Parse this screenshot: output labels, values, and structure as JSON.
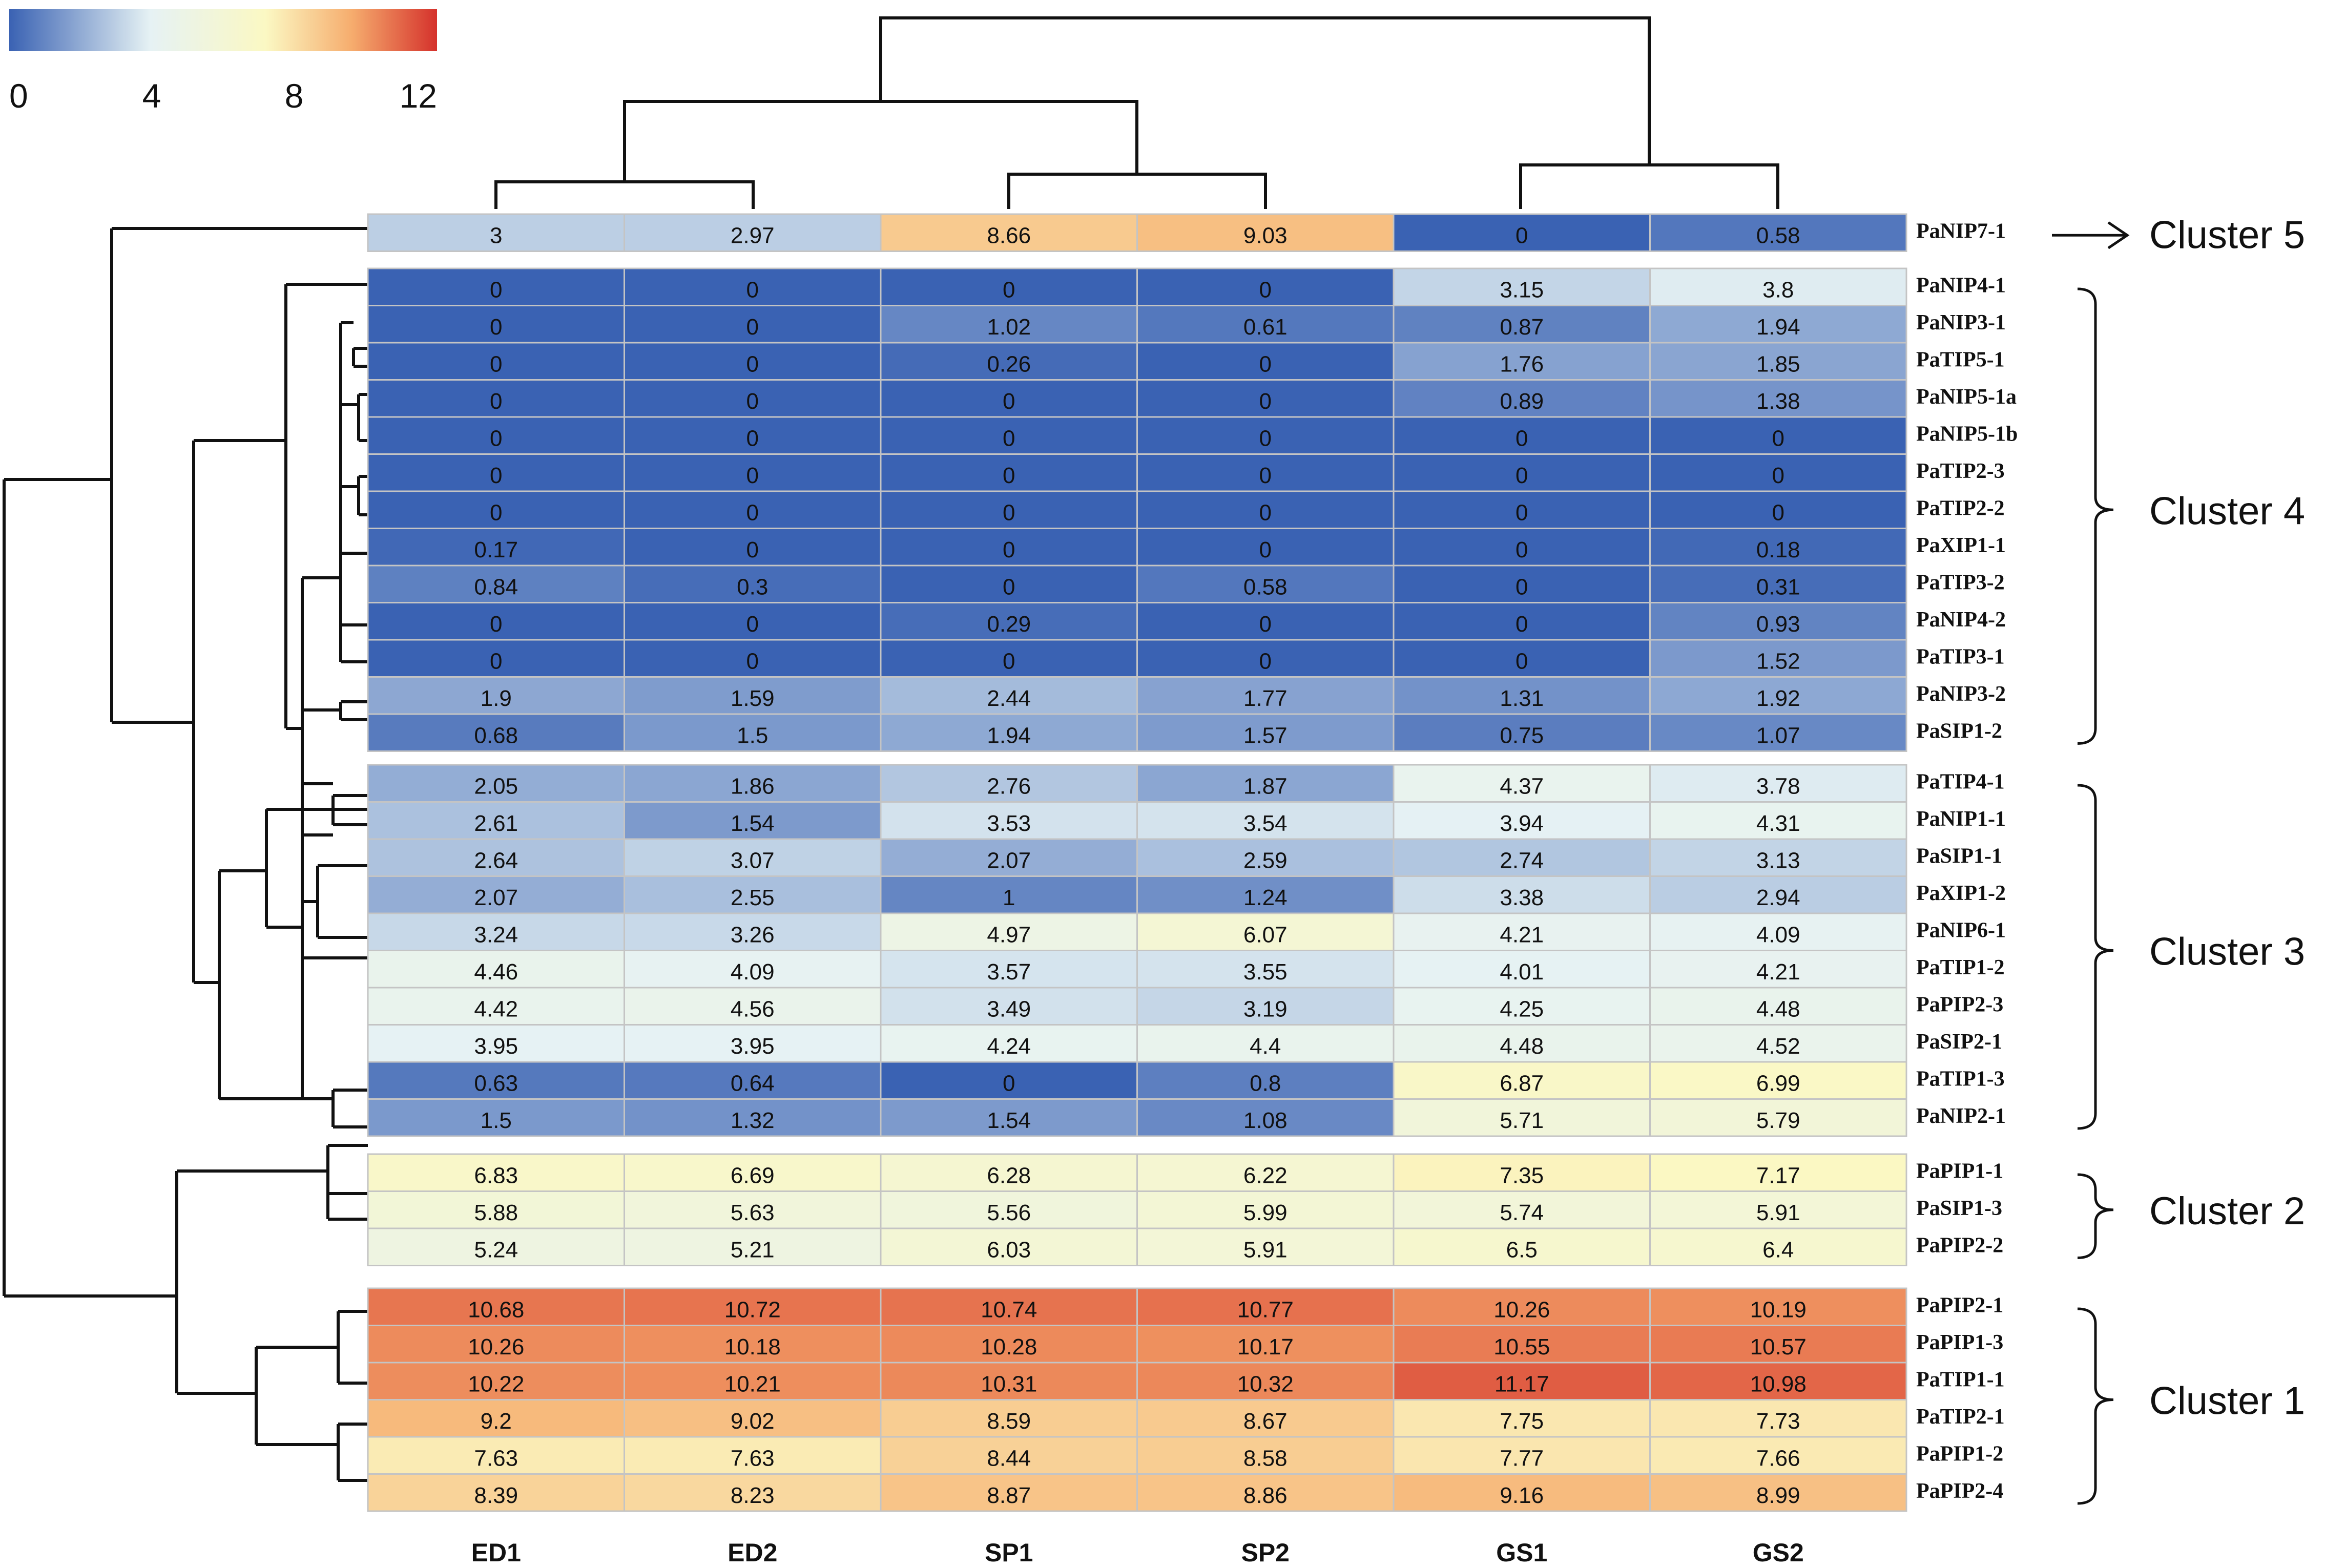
{
  "chart_data": {
    "type": "heatmap",
    "title": "",
    "columns": [
      "ED1",
      "ED2",
      "SP1",
      "SP2",
      "GS1",
      "GS2"
    ],
    "color_scale": {
      "min": 0,
      "max": 12,
      "ticks": [
        "0",
        "4",
        "8",
        "12"
      ],
      "colors": [
        "#3a62b3",
        "#e6f2f4",
        "#fbf8c3",
        "#f6ad6e",
        "#d5322c"
      ]
    },
    "clusters": [
      {
        "name": "Cluster 5",
        "rows": [
          {
            "gene": "PaNIP7-1",
            "values": [
              3,
              2.97,
              8.66,
              9.03,
              0,
              0.58
            ],
            "labels": [
              "3",
              "2.97",
              "8.66",
              "9.03",
              "0",
              "0.58"
            ]
          }
        ]
      },
      {
        "name": "Cluster 4",
        "rows": [
          {
            "gene": "PaNIP4-1",
            "values": [
              0,
              0,
              0,
              0,
              3.15,
              3.8
            ],
            "labels": [
              "0",
              "0",
              "0",
              "0",
              "3.15",
              "3.8"
            ]
          },
          {
            "gene": "PaNIP3-1",
            "values": [
              0,
              0,
              1.02,
              0.61,
              0.87,
              1.94
            ],
            "labels": [
              "0",
              "0",
              "1.02",
              "0.61",
              "0.87",
              "1.94"
            ]
          },
          {
            "gene": "PaTIP5-1",
            "values": [
              0,
              0,
              0.26,
              0,
              1.76,
              1.85
            ],
            "labels": [
              "0",
              "0",
              "0.26",
              "0",
              "1.76",
              "1.85"
            ]
          },
          {
            "gene": "PaNIP5-1a",
            "values": [
              0,
              0,
              0,
              0,
              0.89,
              1.38
            ],
            "labels": [
              "0",
              "0",
              "0",
              "0",
              "0.89",
              "1.38"
            ]
          },
          {
            "gene": "PaNIP5-1b",
            "values": [
              0,
              0,
              0,
              0,
              0,
              0
            ],
            "labels": [
              "0",
              "0",
              "0",
              "0",
              "0",
              "0"
            ]
          },
          {
            "gene": "PaTIP2-3",
            "values": [
              0,
              0,
              0,
              0,
              0,
              0
            ],
            "labels": [
              "0",
              "0",
              "0",
              "0",
              "0",
              "0"
            ]
          },
          {
            "gene": "PaTIP2-2",
            "values": [
              0,
              0,
              0,
              0,
              0,
              0
            ],
            "labels": [
              "0",
              "0",
              "0",
              "0",
              "0",
              "0"
            ]
          },
          {
            "gene": "PaXIP1-1",
            "values": [
              0.17,
              0,
              0,
              0,
              0,
              0.18
            ],
            "labels": [
              "0.17",
              "0",
              "0",
              "0",
              "0",
              "0.18"
            ]
          },
          {
            "gene": "PaTIP3-2",
            "values": [
              0.84,
              0.3,
              0,
              0.58,
              0,
              0.31
            ],
            "labels": [
              "0.84",
              "0.3",
              "0",
              "0.58",
              "0",
              "0.31"
            ]
          },
          {
            "gene": "PaNIP4-2",
            "values": [
              0,
              0,
              0.29,
              0,
              0,
              0.93
            ],
            "labels": [
              "0",
              "0",
              "0.29",
              "0",
              "0",
              "0.93"
            ]
          },
          {
            "gene": "PaTIP3-1",
            "values": [
              0,
              0,
              0,
              0,
              0,
              1.52
            ],
            "labels": [
              "0",
              "0",
              "0",
              "0",
              "0",
              "1.52"
            ]
          },
          {
            "gene": "PaNIP3-2",
            "values": [
              1.9,
              1.59,
              2.44,
              1.77,
              1.31,
              1.92
            ],
            "labels": [
              "1.9",
              "1.59",
              "2.44",
              "1.77",
              "1.31",
              "1.92"
            ]
          },
          {
            "gene": "PaSIP1-2",
            "values": [
              0.68,
              1.5,
              1.94,
              1.57,
              0.75,
              1.07
            ],
            "labels": [
              "0.68",
              "1.5",
              "1.94",
              "1.57",
              "0.75",
              "1.07"
            ]
          }
        ]
      },
      {
        "name": "Cluster 3",
        "rows": [
          {
            "gene": "PaTIP4-1",
            "values": [
              2.05,
              1.86,
              2.76,
              1.87,
              4.37,
              3.78
            ],
            "labels": [
              "2.05",
              "1.86",
              "2.76",
              "1.87",
              "4.37",
              "3.78"
            ]
          },
          {
            "gene": "PaNIP1-1",
            "values": [
              2.61,
              1.54,
              3.53,
              3.54,
              3.94,
              4.31
            ],
            "labels": [
              "2.61",
              "1.54",
              "3.53",
              "3.54",
              "3.94",
              "4.31"
            ]
          },
          {
            "gene": "PaSIP1-1",
            "values": [
              2.64,
              3.07,
              2.07,
              2.59,
              2.74,
              3.13
            ],
            "labels": [
              "2.64",
              "3.07",
              "2.07",
              "2.59",
              "2.74",
              "3.13"
            ]
          },
          {
            "gene": "PaXIP1-2",
            "values": [
              2.07,
              2.55,
              1,
              1.24,
              3.38,
              2.94
            ],
            "labels": [
              "2.07",
              "2.55",
              "1",
              "1.24",
              "3.38",
              "2.94"
            ]
          },
          {
            "gene": "PaNIP6-1",
            "values": [
              3.24,
              3.26,
              4.97,
              6.07,
              4.21,
              4.09
            ],
            "labels": [
              "3.24",
              "3.26",
              "4.97",
              "6.07",
              "4.21",
              "4.09"
            ]
          },
          {
            "gene": "PaTIP1-2",
            "values": [
              4.46,
              4.09,
              3.57,
              3.55,
              4.01,
              4.21
            ],
            "labels": [
              "4.46",
              "4.09",
              "3.57",
              "3.55",
              "4.01",
              "4.21"
            ]
          },
          {
            "gene": "PaPIP2-3",
            "values": [
              4.42,
              4.56,
              3.49,
              3.19,
              4.25,
              4.48
            ],
            "labels": [
              "4.42",
              "4.56",
              "3.49",
              "3.19",
              "4.25",
              "4.48"
            ]
          },
          {
            "gene": "PaSIP2-1",
            "values": [
              3.95,
              3.95,
              4.24,
              4.4,
              4.48,
              4.52
            ],
            "labels": [
              "3.95",
              "3.95",
              "4.24",
              "4.4",
              "4.48",
              "4.52"
            ]
          },
          {
            "gene": "PaTIP1-3",
            "values": [
              0.63,
              0.64,
              0,
              0.8,
              6.87,
              6.99
            ],
            "labels": [
              "0.63",
              "0.64",
              "0",
              "0.8",
              "6.87",
              "6.99"
            ]
          },
          {
            "gene": "PaNIP2-1",
            "values": [
              1.5,
              1.32,
              1.54,
              1.08,
              5.71,
              5.79
            ],
            "labels": [
              "1.5",
              "1.32",
              "1.54",
              "1.08",
              "5.71",
              "5.79"
            ]
          }
        ]
      },
      {
        "name": "Cluster 2",
        "rows": [
          {
            "gene": "PaPIP1-1",
            "values": [
              6.83,
              6.69,
              6.28,
              6.22,
              7.35,
              7.17
            ],
            "labels": [
              "6.83",
              "6.69",
              "6.28",
              "6.22",
              "7.35",
              "7.17"
            ]
          },
          {
            "gene": "PaSIP1-3",
            "values": [
              5.88,
              5.63,
              5.56,
              5.99,
              5.74,
              5.91
            ],
            "labels": [
              "5.88",
              "5.63",
              "5.56",
              "5.99",
              "5.74",
              "5.91"
            ]
          },
          {
            "gene": "PaPIP2-2",
            "values": [
              5.24,
              5.21,
              6.03,
              5.91,
              6.5,
              6.4
            ],
            "labels": [
              "5.24",
              "5.21",
              "6.03",
              "5.91",
              "6.5",
              "6.4"
            ]
          }
        ]
      },
      {
        "name": "Cluster 1",
        "rows": [
          {
            "gene": "PaPIP2-1",
            "values": [
              10.68,
              10.72,
              10.74,
              10.77,
              10.26,
              10.19
            ],
            "labels": [
              "10.68",
              "10.72",
              "10.74",
              "10.77",
              "10.26",
              "10.19"
            ]
          },
          {
            "gene": "PaPIP1-3",
            "values": [
              10.26,
              10.18,
              10.28,
              10.17,
              10.55,
              10.57
            ],
            "labels": [
              "10.26",
              "10.18",
              "10.28",
              "10.17",
              "10.55",
              "10.57"
            ]
          },
          {
            "gene": "PaTIP1-1",
            "values": [
              10.22,
              10.21,
              10.31,
              10.32,
              11.17,
              10.98
            ],
            "labels": [
              "10.22",
              "10.21",
              "10.31",
              "10.32",
              "11.17",
              "10.98"
            ]
          },
          {
            "gene": "PaTIP2-1",
            "values": [
              9.2,
              9.02,
              8.59,
              8.67,
              7.75,
              7.73
            ],
            "labels": [
              "9.2",
              "9.02",
              "8.59",
              "8.67",
              "7.75",
              "7.73"
            ]
          },
          {
            "gene": "PaPIP1-2",
            "values": [
              7.63,
              7.63,
              8.44,
              8.58,
              7.77,
              7.66
            ],
            "labels": [
              "7.63",
              "7.63",
              "8.44",
              "8.58",
              "7.77",
              "7.66"
            ]
          },
          {
            "gene": "PaPIP2-4",
            "values": [
              8.39,
              8.23,
              8.87,
              8.86,
              9.16,
              8.99
            ],
            "labels": [
              "8.39",
              "8.23",
              "8.87",
              "8.86",
              "9.16",
              "8.99"
            ]
          }
        ]
      }
    ]
  }
}
